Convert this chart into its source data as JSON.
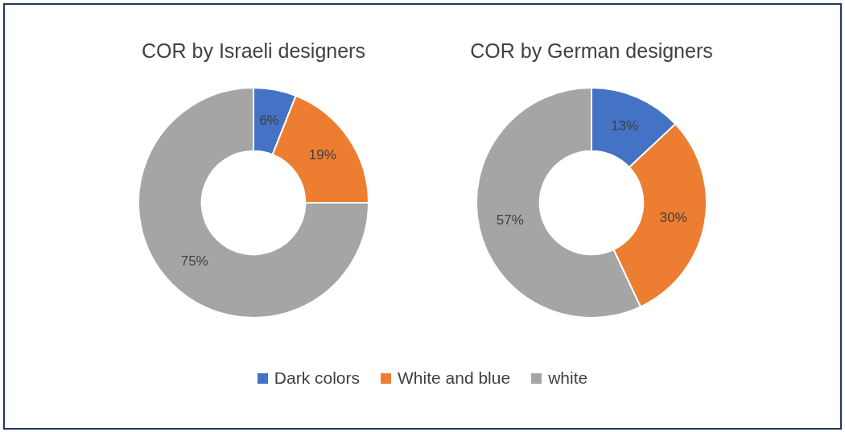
{
  "chart_data": [
    {
      "type": "donut",
      "title": "COR by Israeli designers",
      "categories": [
        "Dark colors",
        "White and blue",
        "white"
      ],
      "values": [
        6,
        19,
        75
      ],
      "value_labels": [
        "6%",
        "19%",
        "75%"
      ],
      "colors": [
        "#4472c4",
        "#ed7d31",
        "#a5a5a5"
      ],
      "legend": "bottom"
    },
    {
      "type": "donut",
      "title": "COR by German designers",
      "categories": [
        null,
        null,
        null
      ],
      "values": [
        13,
        30,
        57
      ],
      "value_labels": [
        "13%",
        "30%",
        "57%"
      ],
      "colors": [
        "#4472c4",
        "#ed7d31",
        "#a5a5a5"
      ]
    }
  ]
}
